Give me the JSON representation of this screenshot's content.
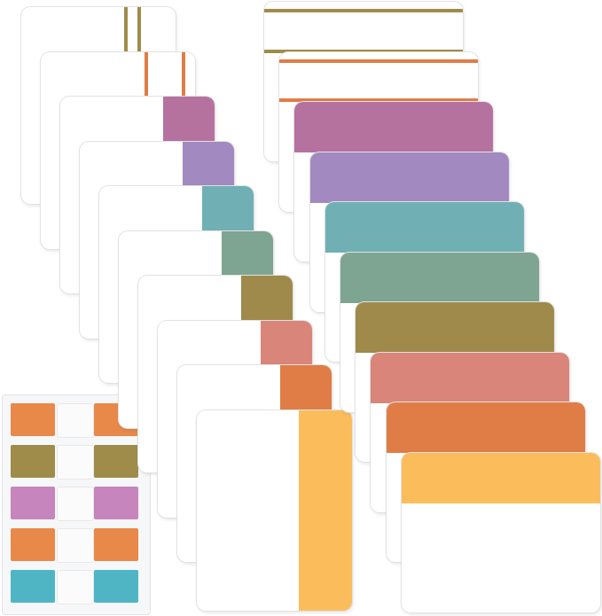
{
  "product": {
    "vertical_tabs": {
      "colors": [
        "#a08c4a",
        "#e07d46",
        "#b5729f",
        "#a28ac0",
        "#70b0b4",
        "#7ea592",
        "#9f8a4c",
        "#d9857a",
        "#e07d46",
        "#fbbd5b"
      ]
    },
    "horizontal_tabs": {
      "colors": [
        "#a08c4a",
        "#e07d46",
        "#b5729f",
        "#a28ac0",
        "#70b0b4",
        "#7ea592",
        "#9f8a4c",
        "#d9857a",
        "#e07d46",
        "#fbbd5b"
      ]
    },
    "mini_tab_sheet": {
      "colors": [
        "#e8894a",
        "#a08c4a",
        "#c685bd",
        "#e8894a",
        "#4fb5c4"
      ]
    }
  }
}
